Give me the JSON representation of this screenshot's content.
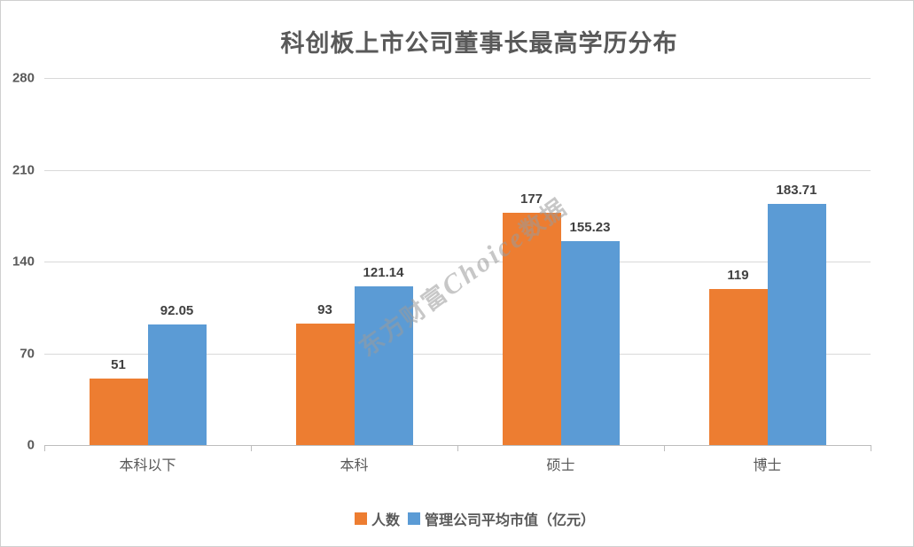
{
  "watermark": {
    "cn_left": "东方财富",
    "en": "Choice",
    "cn_right": "数据"
  },
  "chart_data": {
    "type": "bar",
    "title": "科创板上市公司董事长最高学历分布",
    "categories": [
      "本科以下",
      "本科",
      "硕士",
      "博士"
    ],
    "series": [
      {
        "name": "人数",
        "color": "#ED7D31",
        "values": [
          51,
          93,
          177,
          119
        ]
      },
      {
        "name": "管理公司平均市值（亿元）",
        "color": "#5B9BD5",
        "values": [
          92.05,
          121.14,
          155.23,
          183.71
        ]
      }
    ],
    "xlabel": "",
    "ylabel": "",
    "ylim": [
      0,
      280
    ],
    "yticks": [
      0,
      70,
      140,
      210,
      280
    ],
    "grid": true,
    "data_labels": true,
    "legend_position": "bottom"
  }
}
